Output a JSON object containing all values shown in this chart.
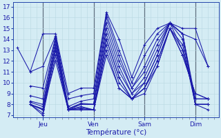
{
  "title": "Température (°c)",
  "ylabel_values": [
    7,
    8,
    9,
    10,
    11,
    12,
    13,
    14,
    15,
    16,
    17
  ],
  "ylim": [
    6.8,
    17.4
  ],
  "xlim": [
    -2,
    95
  ],
  "day_ticks": [
    12,
    36,
    60,
    84
  ],
  "day_labels": [
    "Jeu",
    "Ven",
    "Sam",
    "Dim"
  ],
  "bg_color": "#d4ecf4",
  "grid_minor_color": "#b8d8e2",
  "grid_major_x_color": "#607080",
  "line_color": "#1a1aaa",
  "series": [
    [
      0,
      13.2,
      6,
      11.0,
      12,
      14.5,
      18,
      14.5,
      24,
      9.0,
      30,
      9.5,
      36,
      9.5,
      42,
      16.5,
      48,
      14.0,
      54,
      10.5,
      60,
      13.5,
      66,
      15.0,
      72,
      15.5,
      78,
      15.0,
      84,
      15.0,
      90,
      11.5
    ],
    [
      6,
      11.0,
      12,
      11.5,
      18,
      14.3,
      24,
      8.5,
      30,
      8.8,
      36,
      9.0,
      42,
      16.3,
      48,
      13.0,
      54,
      10.0,
      60,
      12.5,
      66,
      14.5,
      72,
      15.5,
      78,
      14.5,
      84,
      14.0,
      90,
      11.5
    ],
    [
      6,
      9.7,
      12,
      9.5,
      18,
      14.2,
      24,
      7.8,
      30,
      8.3,
      36,
      8.5,
      42,
      16.0,
      48,
      12.5,
      54,
      9.5,
      60,
      11.5,
      66,
      14.0,
      72,
      15.5,
      78,
      14.5,
      84,
      8.5,
      90,
      8.5
    ],
    [
      6,
      8.8,
      12,
      8.5,
      18,
      14.1,
      24,
      7.6,
      30,
      8.1,
      36,
      8.0,
      42,
      15.5,
      48,
      12.0,
      54,
      9.5,
      60,
      11.0,
      66,
      13.5,
      72,
      15.5,
      78,
      14.5,
      84,
      8.0,
      90,
      8.0
    ],
    [
      6,
      8.3,
      12,
      8.0,
      18,
      13.8,
      24,
      7.6,
      30,
      8.0,
      36,
      8.0,
      42,
      15.0,
      48,
      11.5,
      54,
      9.0,
      60,
      10.5,
      66,
      13.0,
      72,
      15.5,
      78,
      14.5,
      84,
      8.0,
      90,
      8.0
    ],
    [
      6,
      8.2,
      12,
      7.8,
      18,
      13.5,
      24,
      7.5,
      30,
      8.0,
      36,
      8.0,
      42,
      14.5,
      48,
      11.0,
      54,
      9.0,
      60,
      10.0,
      66,
      12.5,
      72,
      15.5,
      78,
      14.0,
      84,
      8.0,
      90,
      8.0
    ],
    [
      6,
      8.0,
      12,
      7.6,
      18,
      13.2,
      24,
      7.5,
      30,
      7.8,
      36,
      7.5,
      42,
      14.0,
      48,
      10.5,
      54,
      8.5,
      60,
      9.5,
      66,
      12.0,
      72,
      15.0,
      78,
      13.5,
      84,
      8.0,
      90,
      7.5
    ],
    [
      6,
      8.0,
      12,
      7.5,
      18,
      13.0,
      24,
      7.5,
      30,
      7.7,
      36,
      7.5,
      42,
      14.0,
      48,
      10.5,
      54,
      8.5,
      60,
      9.5,
      66,
      12.0,
      72,
      15.0,
      78,
      13.0,
      84,
      8.5,
      90,
      8.5
    ],
    [
      6,
      8.0,
      12,
      7.2,
      18,
      13.0,
      24,
      7.5,
      30,
      7.6,
      36,
      7.5,
      42,
      13.5,
      48,
      10.0,
      54,
      8.5,
      60,
      10.0,
      66,
      12.5,
      72,
      15.5,
      78,
      13.0,
      84,
      8.5,
      90,
      8.5
    ],
    [
      6,
      8.0,
      12,
      7.0,
      18,
      12.5,
      24,
      7.5,
      30,
      7.5,
      36,
      7.5,
      42,
      13.0,
      48,
      9.5,
      54,
      8.5,
      60,
      9.5,
      66,
      11.5,
      72,
      15.0,
      78,
      12.5,
      84,
      9.0,
      90,
      8.5
    ],
    [
      6,
      8.0,
      12,
      7.5,
      18,
      12.0,
      24,
      7.5,
      30,
      7.5,
      36,
      7.5,
      42,
      12.5,
      48,
      9.5,
      54,
      8.5,
      60,
      9.0,
      66,
      11.5,
      72,
      15.0,
      78,
      12.5,
      84,
      9.0,
      90,
      8.5
    ]
  ]
}
